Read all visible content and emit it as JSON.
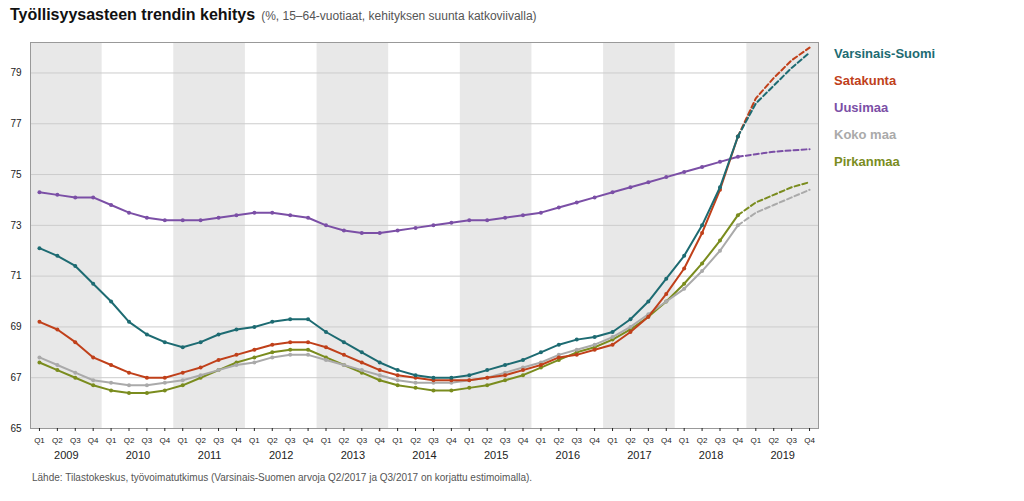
{
  "chart_data": {
    "type": "line",
    "title": "Työllisyysasteen trendin kehitys",
    "subtitle": "(%, 15–64-vuotiaat, kehityksen suunta katkoviivalla)",
    "footnote": "Lähde: Tilastokeskus, työvoimatutkimus (Varsinais-Suomen arvoja Q2/2017 ja Q3/2017 on korjattu estimoimalla).",
    "categories": [
      "Q1",
      "Q2",
      "Q3",
      "Q4",
      "Q1",
      "Q2",
      "Q3",
      "Q4",
      "Q1",
      "Q2",
      "Q3",
      "Q4",
      "Q1",
      "Q2",
      "Q3",
      "Q4",
      "Q1",
      "Q2",
      "Q3",
      "Q4",
      "Q1",
      "Q2",
      "Q3",
      "Q4",
      "Q1",
      "Q2",
      "Q3",
      "Q4",
      "Q1",
      "Q2",
      "Q3",
      "Q4",
      "Q1",
      "Q2",
      "Q3",
      "Q4",
      "Q1",
      "Q2",
      "Q3",
      "Q4",
      "Q1",
      "Q2",
      "Q3",
      "Q4"
    ],
    "year_labels": [
      2009,
      2010,
      2011,
      2012,
      2013,
      2014,
      2015,
      2016,
      2017,
      2018,
      2019
    ],
    "forecast_start_index": 40,
    "ylim": [
      65,
      80.2
    ],
    "yticks": [
      65,
      67,
      69,
      71,
      73,
      75,
      77,
      79
    ],
    "grid": true,
    "legend": "right",
    "marker": "circle",
    "series": [
      {
        "name": "Varsinais-Suomi",
        "color": "#1d6b72",
        "values": [
          72.1,
          71.8,
          71.4,
          70.7,
          70.0,
          69.2,
          68.7,
          68.4,
          68.2,
          68.4,
          68.7,
          68.9,
          69.0,
          69.2,
          69.3,
          69.3,
          68.8,
          68.4,
          68.0,
          67.6,
          67.3,
          67.1,
          67.0,
          67.0,
          67.1,
          67.3,
          67.5,
          67.7,
          68.0,
          68.3,
          68.5,
          68.6,
          68.8,
          69.3,
          70.0,
          70.9,
          71.8,
          73.0,
          74.5,
          76.5,
          77.8,
          78.5,
          79.2,
          79.8
        ]
      },
      {
        "name": "Satakunta",
        "color": "#c0401a",
        "values": [
          69.2,
          68.9,
          68.4,
          67.8,
          67.5,
          67.2,
          67.0,
          67.0,
          67.2,
          67.4,
          67.7,
          67.9,
          68.1,
          68.3,
          68.4,
          68.4,
          68.2,
          67.9,
          67.6,
          67.3,
          67.1,
          67.0,
          66.9,
          66.9,
          66.9,
          67.0,
          67.1,
          67.3,
          67.5,
          67.8,
          67.9,
          68.1,
          68.3,
          68.8,
          69.4,
          70.3,
          71.3,
          72.7,
          74.4,
          76.5,
          78.0,
          78.8,
          79.5,
          80.0
        ]
      },
      {
        "name": "Uusimaa",
        "color": "#7b4fa6",
        "values": [
          74.3,
          74.2,
          74.1,
          74.1,
          73.8,
          73.5,
          73.3,
          73.2,
          73.2,
          73.2,
          73.3,
          73.4,
          73.5,
          73.5,
          73.4,
          73.3,
          73.0,
          72.8,
          72.7,
          72.7,
          72.8,
          72.9,
          73.0,
          73.1,
          73.2,
          73.2,
          73.3,
          73.4,
          73.5,
          73.7,
          73.9,
          74.1,
          74.3,
          74.5,
          74.7,
          74.9,
          75.1,
          75.3,
          75.5,
          75.7,
          75.8,
          75.9,
          75.95,
          76.0
        ]
      },
      {
        "name": "Koko maa",
        "color": "#aaaaaa",
        "values": [
          67.8,
          67.5,
          67.2,
          66.9,
          66.8,
          66.7,
          66.7,
          66.8,
          66.9,
          67.1,
          67.3,
          67.5,
          67.6,
          67.8,
          67.9,
          67.9,
          67.7,
          67.5,
          67.3,
          67.1,
          66.9,
          66.8,
          66.8,
          66.8,
          66.9,
          67.0,
          67.2,
          67.4,
          67.6,
          67.9,
          68.1,
          68.3,
          68.6,
          69.0,
          69.5,
          70.0,
          70.5,
          71.2,
          72.0,
          73.0,
          73.5,
          73.8,
          74.1,
          74.4
        ]
      },
      {
        "name": "Pirkanmaa",
        "color": "#7a8c1e",
        "values": [
          67.6,
          67.3,
          67.0,
          66.7,
          66.5,
          66.4,
          66.4,
          66.5,
          66.7,
          67.0,
          67.3,
          67.6,
          67.8,
          68.0,
          68.1,
          68.1,
          67.8,
          67.5,
          67.2,
          66.9,
          66.7,
          66.6,
          66.5,
          66.5,
          66.6,
          66.7,
          66.9,
          67.1,
          67.4,
          67.7,
          68.0,
          68.2,
          68.5,
          68.9,
          69.4,
          70.0,
          70.7,
          71.5,
          72.4,
          73.4,
          73.9,
          74.2,
          74.5,
          74.7
        ]
      }
    ]
  }
}
